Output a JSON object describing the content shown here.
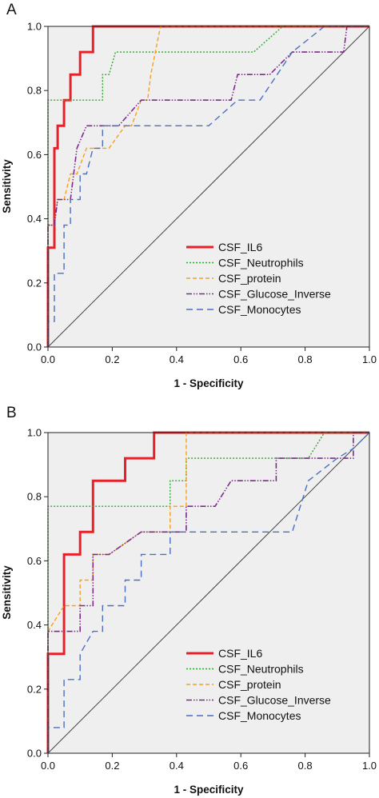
{
  "chart_data": [
    {
      "panel_label": "A",
      "type": "line",
      "title": "",
      "xlabel": "1 - Specificity",
      "ylabel": "Sensitivity",
      "xlim": [
        0,
        1
      ],
      "ylim": [
        0,
        1
      ],
      "x_ticks": [
        "0.0",
        "0.2",
        "0.4",
        "0.6",
        "0.8",
        "1.0"
      ],
      "y_ticks": [
        "0.0",
        "0.2",
        "0.4",
        "0.6",
        "0.8",
        "1.0"
      ],
      "grid": false,
      "legend_position": "bottom-right",
      "series": [
        {
          "name": "CSF_IL6",
          "color": "#e8202a",
          "style": "solid",
          "points": [
            [
              0,
              0
            ],
            [
              0,
              0.31
            ],
            [
              0.02,
              0.31
            ],
            [
              0.02,
              0.62
            ],
            [
              0.03,
              0.62
            ],
            [
              0.03,
              0.69
            ],
            [
              0.05,
              0.69
            ],
            [
              0.05,
              0.77
            ],
            [
              0.07,
              0.77
            ],
            [
              0.07,
              0.85
            ],
            [
              0.1,
              0.85
            ],
            [
              0.1,
              0.92
            ],
            [
              0.14,
              0.92
            ],
            [
              0.14,
              1.0
            ],
            [
              1,
              1
            ]
          ]
        },
        {
          "name": "CSF_Neutrophils",
          "color": "#2cab2c",
          "style": "dotted",
          "points": [
            [
              0,
              0
            ],
            [
              0,
              0.77
            ],
            [
              0.17,
              0.77
            ],
            [
              0.17,
              0.85
            ],
            [
              0.19,
              0.85
            ],
            [
              0.21,
              0.92
            ],
            [
              0.64,
              0.92
            ],
            [
              0.73,
              1.0
            ],
            [
              1,
              1
            ]
          ]
        },
        {
          "name": "CSF_protein",
          "color": "#f5a020",
          "style": "dashed",
          "points": [
            [
              0,
              0
            ],
            [
              0,
              0.38
            ],
            [
              0.02,
              0.38
            ],
            [
              0.03,
              0.46
            ],
            [
              0.05,
              0.46
            ],
            [
              0.07,
              0.54
            ],
            [
              0.09,
              0.54
            ],
            [
              0.12,
              0.62
            ],
            [
              0.19,
              0.62
            ],
            [
              0.24,
              0.69
            ],
            [
              0.26,
              0.69
            ],
            [
              0.29,
              0.77
            ],
            [
              0.31,
              0.77
            ],
            [
              0.32,
              0.85
            ],
            [
              0.35,
              1.0
            ],
            [
              1,
              1
            ]
          ]
        },
        {
          "name": "CSF_Glucose_Inverse",
          "color": "#7d2b8e",
          "style": "dashdotdot",
          "points": [
            [
              0,
              0
            ],
            [
              0,
              0.38
            ],
            [
              0.02,
              0.38
            ],
            [
              0.03,
              0.46
            ],
            [
              0.07,
              0.46
            ],
            [
              0.09,
              0.62
            ],
            [
              0.12,
              0.69
            ],
            [
              0.22,
              0.69
            ],
            [
              0.29,
              0.77
            ],
            [
              0.57,
              0.77
            ],
            [
              0.59,
              0.85
            ],
            [
              0.66,
              0.85
            ],
            [
              0.69,
              0.85
            ],
            [
              0.76,
              0.92
            ],
            [
              0.92,
              0.92
            ],
            [
              0.93,
              1.0
            ],
            [
              1,
              1
            ]
          ]
        },
        {
          "name": "CSF_Monocytes",
          "color": "#4a6fc4",
          "style": "longdash",
          "points": [
            [
              0,
              0
            ],
            [
              0,
              0.08
            ],
            [
              0.02,
              0.08
            ],
            [
              0.02,
              0.23
            ],
            [
              0.05,
              0.23
            ],
            [
              0.05,
              0.38
            ],
            [
              0.07,
              0.38
            ],
            [
              0.07,
              0.46
            ],
            [
              0.1,
              0.46
            ],
            [
              0.1,
              0.54
            ],
            [
              0.12,
              0.54
            ],
            [
              0.14,
              0.62
            ],
            [
              0.17,
              0.62
            ],
            [
              0.17,
              0.69
            ],
            [
              0.5,
              0.69
            ],
            [
              0.59,
              0.77
            ],
            [
              0.66,
              0.77
            ],
            [
              0.76,
              0.92
            ],
            [
              0.86,
              1.0
            ],
            [
              1,
              1
            ]
          ]
        }
      ]
    },
    {
      "panel_label": "B",
      "type": "line",
      "title": "",
      "xlabel": "1 - Specificity",
      "ylabel": "Sensitivity",
      "xlim": [
        0,
        1
      ],
      "ylim": [
        0,
        1
      ],
      "x_ticks": [
        "0.0",
        "0.2",
        "0.4",
        "0.6",
        "0.8",
        "1.0"
      ],
      "y_ticks": [
        "0.0",
        "0.2",
        "0.4",
        "0.6",
        "0.8",
        "1.0"
      ],
      "grid": false,
      "legend_position": "bottom-right",
      "series": [
        {
          "name": "CSF_IL6",
          "color": "#e8202a",
          "style": "solid",
          "points": [
            [
              0,
              0
            ],
            [
              0,
              0.31
            ],
            [
              0.05,
              0.31
            ],
            [
              0.05,
              0.62
            ],
            [
              0.1,
              0.62
            ],
            [
              0.1,
              0.69
            ],
            [
              0.14,
              0.69
            ],
            [
              0.14,
              0.85
            ],
            [
              0.24,
              0.85
            ],
            [
              0.24,
              0.92
            ],
            [
              0.33,
              0.92
            ],
            [
              0.33,
              1.0
            ],
            [
              1,
              1
            ]
          ]
        },
        {
          "name": "CSF_Neutrophils",
          "color": "#2cab2c",
          "style": "dotted",
          "points": [
            [
              0,
              0
            ],
            [
              0,
              0.77
            ],
            [
              0.38,
              0.77
            ],
            [
              0.38,
              0.85
            ],
            [
              0.43,
              0.85
            ],
            [
              0.43,
              0.92
            ],
            [
              0.81,
              0.92
            ],
            [
              0.86,
              1.0
            ],
            [
              1,
              1
            ]
          ]
        },
        {
          "name": "CSF_protein",
          "color": "#f5a020",
          "style": "dashed",
          "points": [
            [
              0,
              0
            ],
            [
              0,
              0.38
            ],
            [
              0.05,
              0.46
            ],
            [
              0.1,
              0.46
            ],
            [
              0.1,
              0.54
            ],
            [
              0.14,
              0.54
            ],
            [
              0.14,
              0.62
            ],
            [
              0.19,
              0.62
            ],
            [
              0.29,
              0.69
            ],
            [
              0.38,
              0.69
            ],
            [
              0.38,
              0.77
            ],
            [
              0.43,
              0.77
            ],
            [
              0.43,
              1.0
            ],
            [
              1,
              1
            ]
          ]
        },
        {
          "name": "CSF_Glucose_Inverse",
          "color": "#7d2b8e",
          "style": "dashdotdot",
          "points": [
            [
              0,
              0
            ],
            [
              0,
              0.38
            ],
            [
              0.05,
              0.38
            ],
            [
              0.1,
              0.38
            ],
            [
              0.1,
              0.46
            ],
            [
              0.14,
              0.46
            ],
            [
              0.14,
              0.62
            ],
            [
              0.19,
              0.62
            ],
            [
              0.29,
              0.69
            ],
            [
              0.43,
              0.69
            ],
            [
              0.43,
              0.77
            ],
            [
              0.52,
              0.77
            ],
            [
              0.57,
              0.85
            ],
            [
              0.71,
              0.85
            ],
            [
              0.71,
              0.92
            ],
            [
              0.95,
              0.92
            ],
            [
              0.95,
              1.0
            ],
            [
              1,
              1
            ]
          ]
        },
        {
          "name": "CSF_Monocytes",
          "color": "#4a6fc4",
          "style": "longdash",
          "points": [
            [
              0,
              0
            ],
            [
              0,
              0.08
            ],
            [
              0.05,
              0.08
            ],
            [
              0.05,
              0.23
            ],
            [
              0.1,
              0.23
            ],
            [
              0.1,
              0.31
            ],
            [
              0.14,
              0.38
            ],
            [
              0.17,
              0.38
            ],
            [
              0.17,
              0.46
            ],
            [
              0.24,
              0.46
            ],
            [
              0.24,
              0.54
            ],
            [
              0.29,
              0.54
            ],
            [
              0.29,
              0.62
            ],
            [
              0.38,
              0.62
            ],
            [
              0.38,
              0.69
            ],
            [
              0.76,
              0.69
            ],
            [
              0.81,
              0.85
            ],
            [
              0.9,
              0.92
            ],
            [
              0.95,
              0.95
            ],
            [
              1,
              1
            ]
          ]
        }
      ]
    }
  ]
}
